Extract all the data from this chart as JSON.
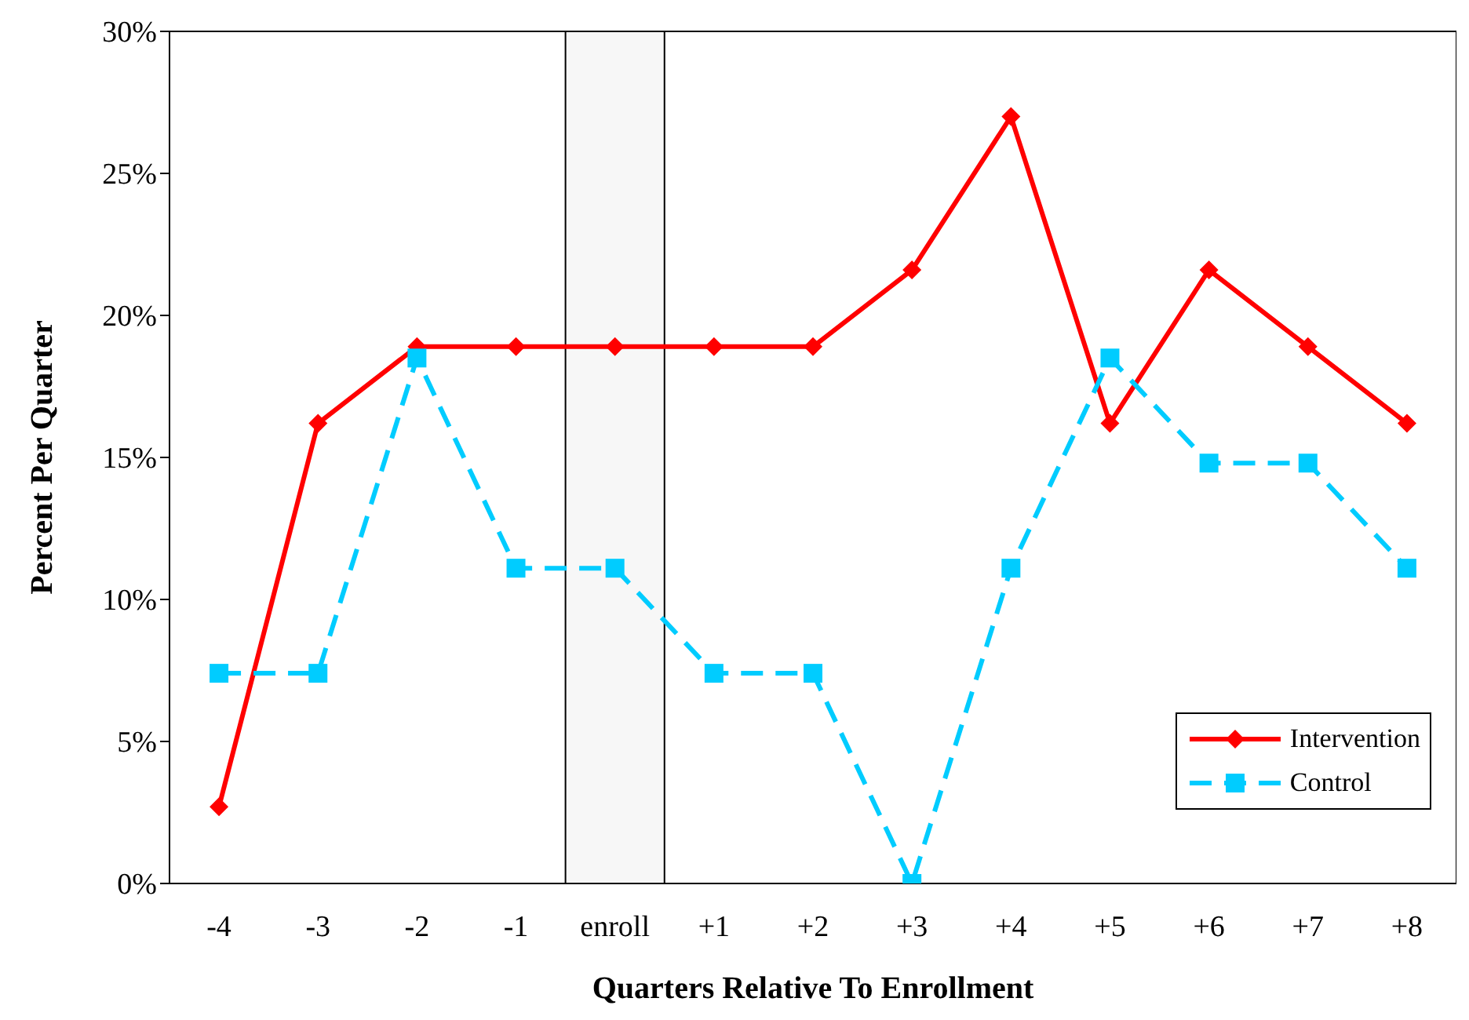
{
  "chart_data": {
    "type": "line",
    "xlabel": "Quarters Relative To Enrollment",
    "ylabel": "Percent Per Quarter",
    "categories": [
      "-4",
      "-3",
      "-2",
      "-1",
      "enroll",
      "+1",
      "+2",
      "+3",
      "+4",
      "+5",
      "+6",
      "+7",
      "+8"
    ],
    "series": [
      {
        "name": "Intervention",
        "color": "#ff0000",
        "marker": "diamond",
        "line_style": "solid",
        "values": [
          2.7,
          16.2,
          18.9,
          18.9,
          18.9,
          18.9,
          18.9,
          21.6,
          27.0,
          16.2,
          21.6,
          18.9,
          16.2
        ]
      },
      {
        "name": "Control",
        "color": "#00ccff",
        "marker": "square",
        "line_style": "dashed",
        "values": [
          7.4,
          7.4,
          18.5,
          11.1,
          11.1,
          7.4,
          7.4,
          0,
          11.1,
          18.5,
          14.8,
          14.8,
          11.1
        ]
      }
    ],
    "ylim": [
      0,
      30
    ],
    "yticks": [
      {
        "value": 0,
        "label": "0%"
      },
      {
        "value": 5,
        "label": "5%"
      },
      {
        "value": 10,
        "label": "10%"
      },
      {
        "value": 15,
        "label": "15%"
      },
      {
        "value": 20,
        "label": "20%"
      },
      {
        "value": 25,
        "label": "25%"
      },
      {
        "value": 30,
        "label": "30%"
      }
    ],
    "bands": [
      {
        "axis": "x",
        "from": "enroll",
        "to": "enroll",
        "color": "#000000"
      }
    ],
    "grid": false,
    "legend": "bottom right"
  }
}
